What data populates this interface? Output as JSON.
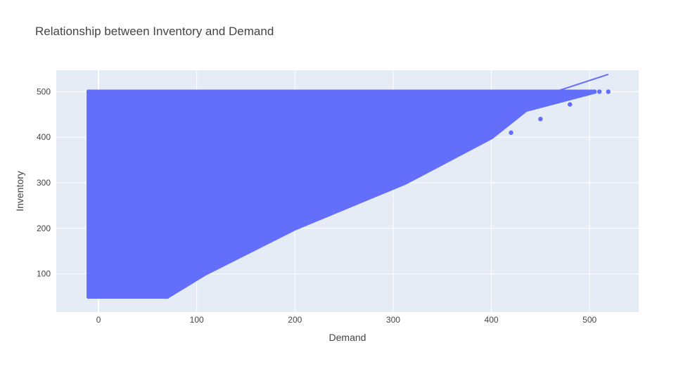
{
  "chart_data": {
    "type": "scatter",
    "title": "Relationship between Inventory and Demand",
    "xlabel": "Demand",
    "ylabel": "Inventory",
    "xlim": [
      -43,
      550
    ],
    "ylim": [
      16,
      547
    ],
    "x_ticks": [
      0,
      100,
      200,
      300,
      400,
      500
    ],
    "y_ticks": [
      100,
      200,
      300,
      400,
      500
    ],
    "grid": true,
    "legend": "none",
    "colors": {
      "marker": "#636efa",
      "plot_bg": "#e5ecf6",
      "grid": "#ffffff",
      "text": "#444444"
    },
    "series": [
      {
        "kind": "points",
        "description_region": {
          "demand_min": -10,
          "inventory_min": 50,
          "inventory_max": 500,
          "upper_envelope_demand_at_inventory": [
            [
              50,
              70
            ],
            [
              100,
              108
            ],
            [
              200,
              200
            ],
            [
              300,
              312
            ],
            [
              400,
              400
            ],
            [
              460,
              435
            ],
            [
              500,
              505
            ]
          ]
        },
        "points": [
          [
            -10,
            50
          ],
          [
            -10,
            500
          ],
          [
            70,
            50
          ],
          [
            505,
            500
          ],
          [
            510,
            500
          ],
          [
            519,
            500
          ],
          [
            480,
            472
          ],
          [
            450,
            440
          ],
          [
            420,
            410
          ],
          [
            380,
            385
          ],
          [
            350,
            360
          ],
          [
            320,
            340
          ],
          [
            300,
            310
          ],
          [
            270,
            280
          ],
          [
            250,
            260
          ],
          [
            220,
            230
          ],
          [
            200,
            210
          ],
          [
            180,
            195
          ],
          [
            150,
            160
          ],
          [
            120,
            130
          ],
          [
            100,
            110
          ],
          [
            90,
            100
          ],
          [
            80,
            90
          ]
        ]
      },
      {
        "kind": "trendline",
        "x": [
          465,
          519
        ],
        "y": [
          500,
          538
        ]
      }
    ]
  }
}
